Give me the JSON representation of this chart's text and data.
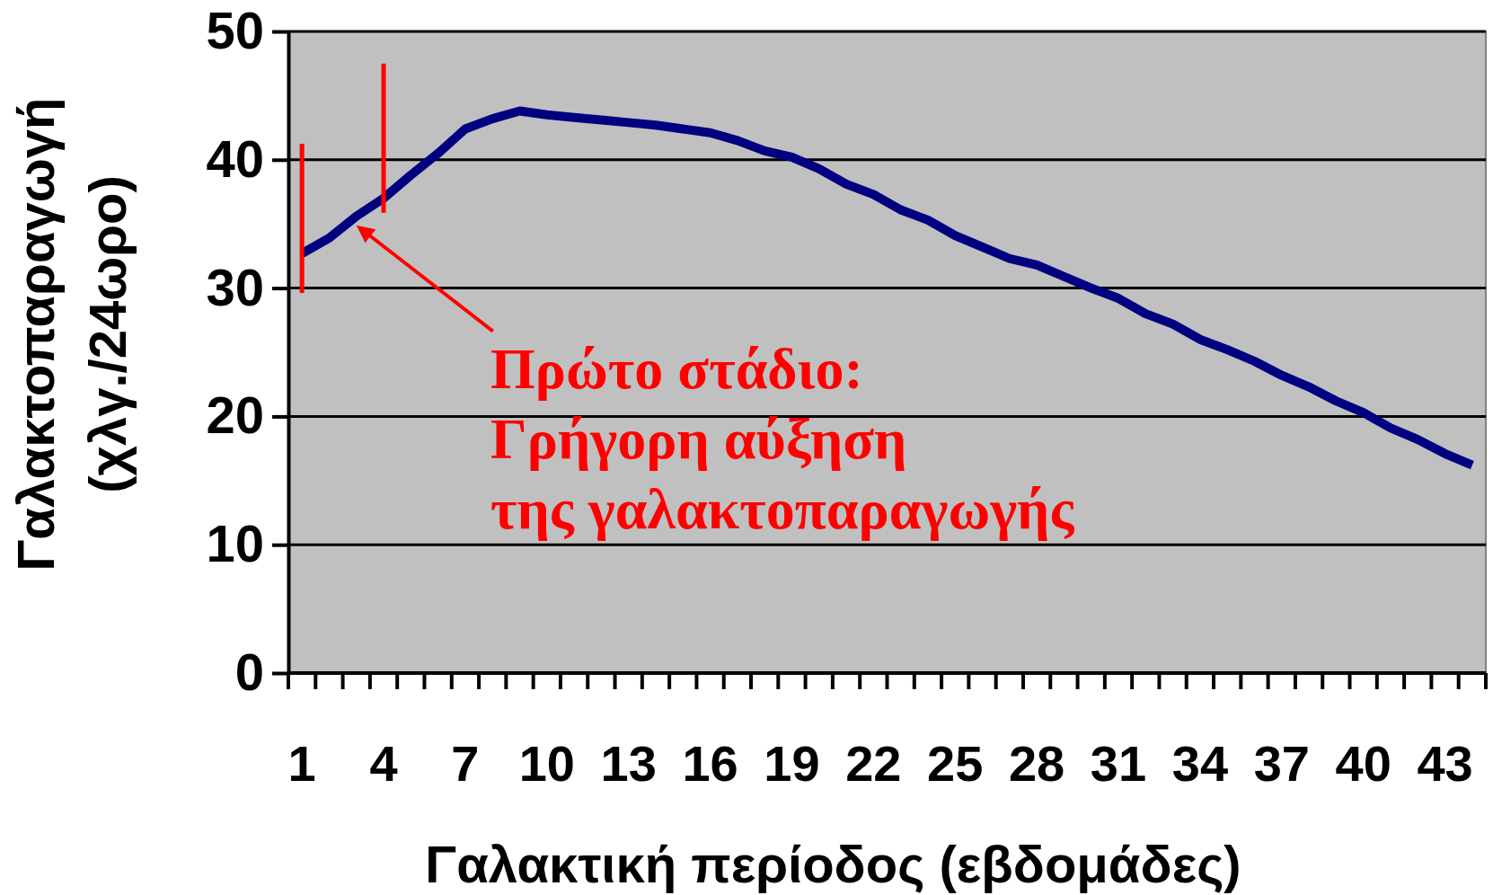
{
  "chart_data": {
    "type": "line",
    "xlabel": "Γαλακτική περίοδος (εβδομάδες)",
    "ylabel": "Γαλακτοπαραγωγή\n(χλγ./24ωρο)",
    "categories": [
      "1",
      null,
      null,
      "4",
      null,
      null,
      "7",
      null,
      null,
      "10",
      null,
      null,
      "13",
      null,
      null,
      "16",
      null,
      null,
      "19",
      null,
      null,
      "22",
      null,
      null,
      "25",
      null,
      null,
      "28",
      null,
      null,
      "31",
      null,
      null,
      "34",
      null,
      null,
      "37",
      null,
      null,
      "40",
      null,
      null,
      "43",
      null
    ],
    "series": [
      {
        "color": "#000080",
        "values": [
          32.7,
          33.9,
          35.6,
          37.0,
          38.8,
          40.5,
          42.4,
          43.2,
          43.8,
          43.5,
          43.3,
          43.1,
          42.9,
          42.7,
          42.4,
          42.1,
          41.5,
          40.7,
          40.2,
          39.3,
          38.1,
          37.3,
          36.1,
          35.3,
          34.1,
          33.2,
          32.3,
          31.8,
          30.9,
          30.0,
          29.2,
          28.0,
          27.2,
          26.0,
          25.2,
          24.3,
          23.2,
          22.3,
          21.2,
          20.3,
          19.1,
          18.2,
          17.1,
          16.2
        ]
      }
    ],
    "ylim": [
      0,
      50
    ],
    "yticks": [
      0,
      10,
      20,
      30,
      40,
      50
    ],
    "grid": "y",
    "marker": "none",
    "line_style": "solid",
    "legend": false,
    "annotations": [
      "Πρώτο στάδιο:\nΓρήγορη αύξηση\nτης γαλακτοπαραγωγής"
    ]
  }
}
